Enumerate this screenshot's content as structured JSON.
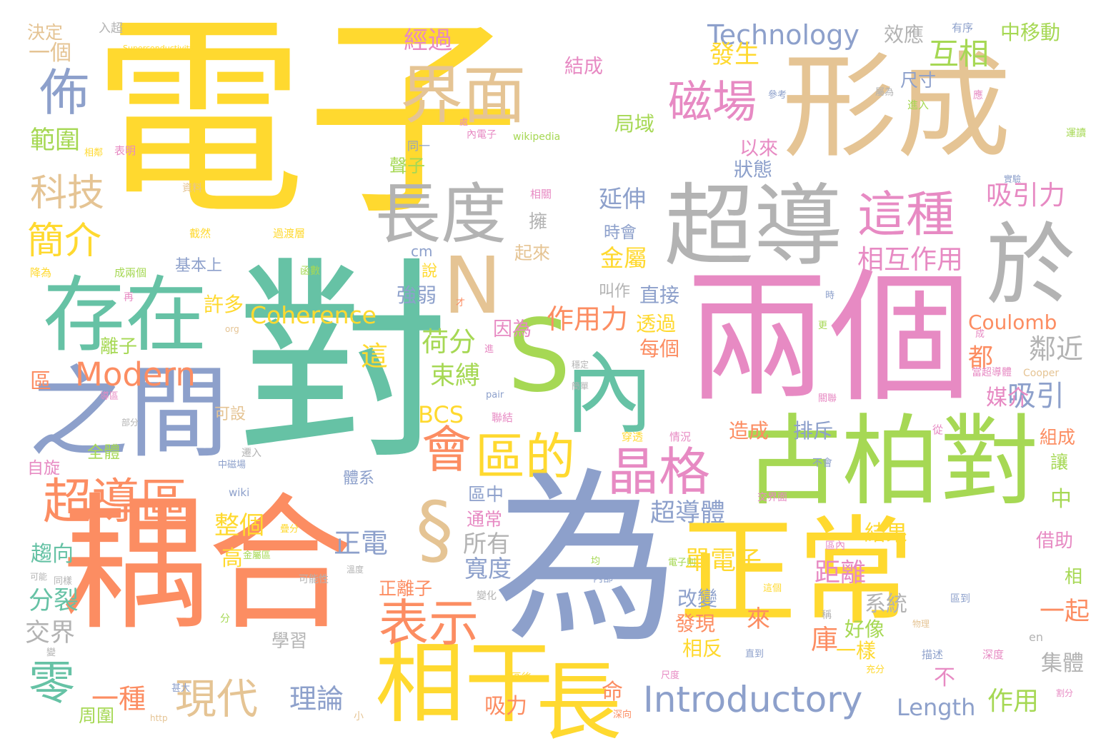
{
  "colors": {
    "yellow": "#ffd92f",
    "teal": "#66c2a5",
    "orange": "#fc8d62",
    "blue": "#8da0cb",
    "pink": "#e78ac3",
    "green": "#a6d854",
    "tan": "#e5c494",
    "gray": "#b3b3b3"
  },
  "words": [
    {
      "text": "電子",
      "color": "yellow"
    },
    {
      "text": "對",
      "color": "teal"
    },
    {
      "text": "形成",
      "color": "tan"
    },
    {
      "text": "兩個",
      "color": "pink"
    },
    {
      "text": "耦合",
      "color": "orange"
    },
    {
      "text": "為",
      "color": "blue"
    },
    {
      "text": "正常",
      "color": "yellow"
    },
    {
      "text": "S",
      "color": "green"
    },
    {
      "text": "超導",
      "color": "gray"
    },
    {
      "text": "古柏對",
      "color": "green"
    },
    {
      "text": "界面",
      "color": "tan"
    },
    {
      "text": "長度",
      "color": "gray"
    },
    {
      "text": "存在",
      "color": "teal"
    },
    {
      "text": "之間",
      "color": "blue"
    },
    {
      "text": "內",
      "color": "teal"
    },
    {
      "text": "N",
      "color": "tan"
    },
    {
      "text": "於",
      "color": "gray"
    },
    {
      "text": "§",
      "color": "tan"
    },
    {
      "text": "相干",
      "color": "yellow"
    },
    {
      "text": "長",
      "color": "yellow"
    },
    {
      "text": "這種",
      "color": "pink"
    },
    {
      "text": "磁場",
      "color": "pink"
    },
    {
      "text": "晶格",
      "color": "pink"
    },
    {
      "text": "表示",
      "color": "orange"
    },
    {
      "text": "會",
      "color": "orange"
    },
    {
      "text": "區的",
      "color": "yellow"
    },
    {
      "text": "超導區",
      "color": "orange"
    },
    {
      "text": "零",
      "color": "teal"
    },
    {
      "text": "現代",
      "color": "tan"
    },
    {
      "text": "Modern",
      "color": "orange"
    },
    {
      "text": "Introductory",
      "color": "blue"
    },
    {
      "text": "佈",
      "color": "blue"
    },
    {
      "text": "科技",
      "color": "tan"
    },
    {
      "text": "簡介",
      "color": "yellow"
    },
    {
      "text": "Technology",
      "color": "blue"
    },
    {
      "text": "Coherence",
      "color": "yellow"
    },
    {
      "text": "一種",
      "color": "orange"
    },
    {
      "text": "理論",
      "color": "blue"
    },
    {
      "text": "作用力",
      "color": "orange"
    },
    {
      "text": "相互作用",
      "color": "pink"
    },
    {
      "text": "吸引力",
      "color": "pink"
    },
    {
      "text": "互相",
      "color": "green"
    },
    {
      "text": "發生",
      "color": "yellow"
    },
    {
      "text": "經過",
      "color": "pink"
    },
    {
      "text": "效應",
      "color": "gray"
    },
    {
      "text": "中移動",
      "color": "green"
    },
    {
      "text": "一個",
      "color": "tan"
    },
    {
      "text": "範圍",
      "color": "green"
    },
    {
      "text": "荷分",
      "color": "green"
    },
    {
      "text": "束縛",
      "color": "green"
    },
    {
      "text": "BCS",
      "color": "yellow"
    },
    {
      "text": "Coulomb",
      "color": "orange"
    },
    {
      "text": "Length",
      "color": "blue"
    },
    {
      "text": "作用",
      "color": "green"
    },
    {
      "text": "鄰近",
      "color": "gray"
    },
    {
      "text": "吸引",
      "color": "blue"
    },
    {
      "text": "單電子",
      "color": "yellow"
    },
    {
      "text": "距離",
      "color": "pink"
    },
    {
      "text": "正電",
      "color": "blue"
    },
    {
      "text": "所有",
      "color": "gray"
    },
    {
      "text": "寬度",
      "color": "blue"
    },
    {
      "text": "超導體",
      "color": "blue"
    },
    {
      "text": "整個",
      "color": "yellow"
    },
    {
      "text": "延伸",
      "color": "blue"
    },
    {
      "text": "金屬",
      "color": "yellow"
    },
    {
      "text": "局域",
      "color": "green"
    },
    {
      "text": "結成",
      "color": "pink"
    },
    {
      "text": "以來",
      "color": "pink"
    },
    {
      "text": "狀態",
      "color": "blue"
    },
    {
      "text": "趨向",
      "color": "teal"
    },
    {
      "text": "分裂",
      "color": "teal"
    },
    {
      "text": "交界",
      "color": "gray"
    },
    {
      "text": "一起",
      "color": "orange"
    },
    {
      "text": "集體",
      "color": "gray"
    },
    {
      "text": "結果",
      "color": "yellow"
    },
    {
      "text": "系統",
      "color": "gray"
    },
    {
      "text": "好像",
      "color": "green"
    },
    {
      "text": "一樣",
      "color": "yellow"
    },
    {
      "text": "改變",
      "color": "blue"
    },
    {
      "text": "發現",
      "color": "orange"
    },
    {
      "text": "相反",
      "color": "yellow"
    },
    {
      "text": "來",
      "color": "orange"
    },
    {
      "text": "庫",
      "color": "orange"
    },
    {
      "text": "不",
      "color": "pink"
    },
    {
      "text": "命",
      "color": "orange"
    },
    {
      "text": "吸力",
      "color": "orange"
    },
    {
      "text": "正離子",
      "color": "orange"
    },
    {
      "text": "造成",
      "color": "orange"
    },
    {
      "text": "排斥",
      "color": "blue"
    },
    {
      "text": "媒介",
      "color": "pink"
    },
    {
      "text": "都",
      "color": "orange"
    },
    {
      "text": "這",
      "color": "yellow"
    },
    {
      "text": "每個",
      "color": "orange"
    },
    {
      "text": "透過",
      "color": "yellow"
    },
    {
      "text": "直接",
      "color": "blue"
    },
    {
      "text": "因為",
      "color": "pink"
    },
    {
      "text": "叫作",
      "color": "gray"
    },
    {
      "text": "強弱",
      "color": "blue"
    },
    {
      "text": "許多",
      "color": "yellow"
    },
    {
      "text": "離子",
      "color": "green"
    },
    {
      "text": "基本上",
      "color": "blue"
    },
    {
      "text": "起來",
      "color": "tan"
    },
    {
      "text": "時會",
      "color": "blue"
    },
    {
      "text": "聲子",
      "color": "green"
    },
    {
      "text": "擁",
      "color": "gray"
    },
    {
      "text": "說",
      "color": "yellow"
    },
    {
      "text": "cm",
      "color": "blue"
    },
    {
      "text": "區",
      "color": "orange"
    },
    {
      "text": "自旋",
      "color": "pink"
    },
    {
      "text": "全體",
      "color": "green"
    },
    {
      "text": "可設",
      "color": "tan"
    },
    {
      "text": "周圍",
      "color": "green"
    },
    {
      "text": "體系",
      "color": "blue"
    },
    {
      "text": "區中",
      "color": "blue"
    },
    {
      "text": "通常",
      "color": "pink"
    },
    {
      "text": "高",
      "color": "yellow"
    },
    {
      "text": "學習",
      "color": "gray"
    },
    {
      "text": "中",
      "color": "green"
    },
    {
      "text": "借助",
      "color": "pink"
    },
    {
      "text": "相",
      "color": "green"
    },
    {
      "text": "組成",
      "color": "orange"
    },
    {
      "text": "讓",
      "color": "green"
    },
    {
      "text": "尺寸",
      "color": "blue"
    },
    {
      "text": "決定",
      "color": "tan"
    },
    {
      "text": "入超",
      "color": "gray"
    },
    {
      "text": "Superconductivity",
      "color": "yellow"
    },
    {
      "text": "有序",
      "color": "blue"
    },
    {
      "text": "參考",
      "color": "blue"
    },
    {
      "text": "進入",
      "color": "green"
    },
    {
      "text": "運讀",
      "color": "green"
    },
    {
      "text": "實驗",
      "color": "blue"
    },
    {
      "text": "內電子",
      "color": "pink"
    },
    {
      "text": "wikipedia",
      "color": "green"
    },
    {
      "text": "同一",
      "color": "blue"
    },
    {
      "text": "相鄰",
      "color": "yellow"
    },
    {
      "text": "表明",
      "color": "pink"
    },
    {
      "text": "資料",
      "color": "tan"
    },
    {
      "text": "相關",
      "color": "pink"
    },
    {
      "text": "截然",
      "color": "yellow"
    },
    {
      "text": "過渡層",
      "color": "yellow"
    },
    {
      "text": "成兩個",
      "color": "green"
    },
    {
      "text": "函數",
      "color": "green"
    },
    {
      "text": "降為",
      "color": "yellow"
    },
    {
      "text": "再",
      "color": "pink"
    },
    {
      "text": "org",
      "color": "tan"
    },
    {
      "text": "穩定",
      "color": "gray"
    },
    {
      "text": "簡單",
      "color": "gray"
    },
    {
      "text": "pair",
      "color": "blue"
    },
    {
      "text": "聯結",
      "color": "pink"
    },
    {
      "text": "穿透",
      "color": "yellow"
    },
    {
      "text": "情況",
      "color": "pink"
    },
    {
      "text": "從",
      "color": "pink"
    },
    {
      "text": "不會",
      "color": "blue"
    },
    {
      "text": "交界面",
      "color": "pink"
    },
    {
      "text": "遷入",
      "color": "gray"
    },
    {
      "text": "中磁場",
      "color": "blue"
    },
    {
      "text": "wiki",
      "color": "blue"
    },
    {
      "text": "疊分",
      "color": "yellow"
    },
    {
      "text": "金屬區",
      "color": "green"
    },
    {
      "text": "同樣",
      "color": "gray"
    },
    {
      "text": "溫度",
      "color": "gray"
    },
    {
      "text": "可能性",
      "color": "gray"
    },
    {
      "text": "均",
      "color": "green"
    },
    {
      "text": "內部",
      "color": "blue"
    },
    {
      "text": "電子則",
      "color": "green"
    },
    {
      "text": "區內",
      "color": "pink"
    },
    {
      "text": "區到",
      "color": "blue"
    },
    {
      "text": "物理",
      "color": "tan"
    },
    {
      "text": "en",
      "color": "gray"
    },
    {
      "text": "描述",
      "color": "blue"
    },
    {
      "text": "深度",
      "color": "pink"
    },
    {
      "text": "直到",
      "color": "blue"
    },
    {
      "text": "充分",
      "color": "yellow"
    },
    {
      "text": "割分",
      "color": "pink"
    },
    {
      "text": "深向",
      "color": "orange"
    },
    {
      "text": "區後",
      "color": "yellow"
    },
    {
      "text": "尺度",
      "color": "pink"
    },
    {
      "text": "http",
      "color": "tan"
    },
    {
      "text": "小",
      "color": "tan"
    },
    {
      "text": "可能",
      "color": "gray"
    },
    {
      "text": "分",
      "color": "green"
    },
    {
      "text": "變化",
      "color": "gray"
    },
    {
      "text": "導區",
      "color": "pink"
    },
    {
      "text": "部分",
      "color": "gray"
    },
    {
      "text": "成",
      "color": "pink"
    },
    {
      "text": "Cooper",
      "color": "tan"
    },
    {
      "text": "當超導體",
      "color": "pink"
    },
    {
      "text": "關聯",
      "color": "pink"
    },
    {
      "text": "更",
      "color": "green"
    },
    {
      "text": "時",
      "color": "blue"
    },
    {
      "text": "才",
      "color": "orange"
    },
    {
      "text": "進",
      "color": "pink"
    },
    {
      "text": "這個",
      "color": "yellow"
    },
    {
      "text": "稱",
      "color": "gray"
    },
    {
      "text": "甚大",
      "color": "blue"
    },
    {
      "text": "變",
      "color": "gray"
    },
    {
      "text": "應",
      "color": "pink"
    },
    {
      "text": "屬為",
      "color": "gray"
    },
    {
      "text": "處",
      "color": "pink"
    },
    {
      "text": "入",
      "color": "gray"
    }
  ]
}
